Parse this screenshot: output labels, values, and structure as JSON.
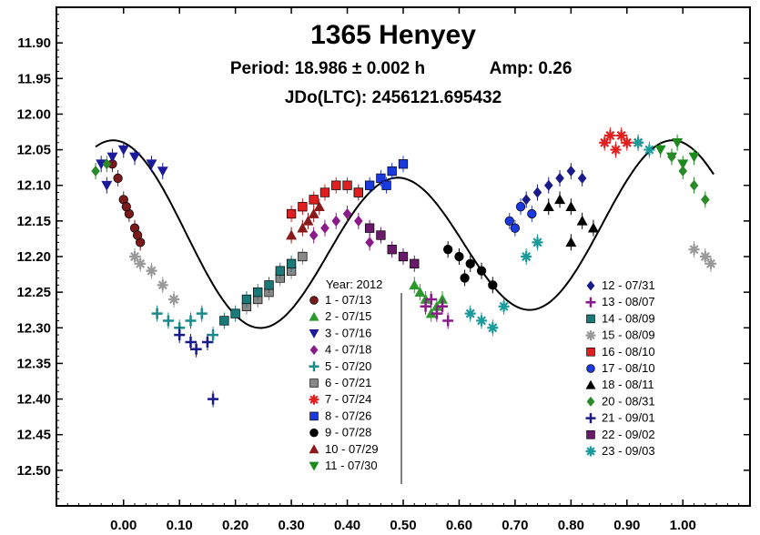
{
  "chart_data": {
    "type": "scatter",
    "title": "1365 Henyey",
    "period_label": "Period: 18.986 ± 0.002 h",
    "amp_label": "Amp: 0.26",
    "epoch_label": "JDo(LTC): 2456121.695432",
    "xlabel": "",
    "ylabel": "",
    "xlim": [
      -0.12,
      1.12
    ],
    "ylim": [
      12.55,
      11.85
    ],
    "y_inverted": true,
    "x_ticks": [
      "0.00",
      "0.10",
      "0.20",
      "0.30",
      "0.40",
      "0.50",
      "0.60",
      "0.70",
      "0.80",
      "0.90",
      "1.00"
    ],
    "y_ticks": [
      "11.90",
      "11.95",
      "12.00",
      "12.05",
      "12.10",
      "12.15",
      "12.20",
      "12.25",
      "12.30",
      "12.35",
      "12.40",
      "12.45",
      "12.50"
    ],
    "legend_title": "Year: 2012",
    "legend_placement": "bottom-center and bottom-right",
    "series": [
      {
        "name": "1 - 07/13",
        "marker": "circle",
        "color": "#7a1a1a",
        "points": [
          [
            -0.02,
            12.07
          ],
          [
            0.0,
            12.12
          ],
          [
            0.01,
            12.14
          ],
          [
            0.02,
            12.16
          ],
          [
            0.03,
            12.18
          ],
          [
            -0.01,
            12.09
          ],
          [
            0.005,
            12.13
          ],
          [
            0.025,
            12.17
          ]
        ]
      },
      {
        "name": "2 - 07/15",
        "marker": "triangle",
        "color": "#2a9a2a",
        "points": [
          [
            0.52,
            12.24
          ],
          [
            0.54,
            12.26
          ],
          [
            0.56,
            12.27
          ],
          [
            0.53,
            12.25
          ],
          [
            0.55,
            12.28
          ],
          [
            0.57,
            12.26
          ]
        ]
      },
      {
        "name": "3 - 07/16",
        "marker": "triangle-down",
        "color": "#1a1a9a",
        "points": [
          [
            -0.04,
            12.07
          ],
          [
            -0.02,
            12.06
          ],
          [
            0.0,
            12.05
          ],
          [
            0.02,
            12.06
          ],
          [
            0.05,
            12.07
          ],
          [
            0.07,
            12.08
          ],
          [
            -0.03,
            12.1
          ]
        ]
      },
      {
        "name": "4 - 07/18",
        "marker": "diamond",
        "color": "#8a1a8a",
        "points": [
          [
            0.34,
            12.17
          ],
          [
            0.36,
            12.16
          ],
          [
            0.38,
            12.15
          ],
          [
            0.4,
            12.14
          ],
          [
            0.42,
            12.15
          ],
          [
            0.44,
            12.18
          ]
        ]
      },
      {
        "name": "5 - 07/20",
        "marker": "plus",
        "color": "#1a8a8a",
        "points": [
          [
            0.06,
            12.28
          ],
          [
            0.08,
            12.29
          ],
          [
            0.1,
            12.3
          ],
          [
            0.12,
            12.29
          ],
          [
            0.14,
            12.28
          ],
          [
            0.16,
            12.31
          ]
        ]
      },
      {
        "name": "6 - 07/21",
        "marker": "square",
        "color": "#888888",
        "points": [
          [
            0.22,
            12.27
          ],
          [
            0.24,
            12.26
          ],
          [
            0.26,
            12.25
          ],
          [
            0.28,
            12.23
          ],
          [
            0.3,
            12.22
          ],
          [
            0.32,
            12.2
          ]
        ]
      },
      {
        "name": "7 - 07/24",
        "marker": "star",
        "color": "#e02020",
        "points": [
          [
            0.86,
            12.04
          ],
          [
            0.87,
            12.03
          ],
          [
            0.88,
            12.05
          ],
          [
            0.89,
            12.03
          ],
          [
            0.9,
            12.04
          ],
          [
            0.92,
            12.04
          ]
        ]
      },
      {
        "name": "8 - 07/26",
        "marker": "square",
        "color": "#1a3ae0",
        "points": [
          [
            0.42,
            12.11
          ],
          [
            0.44,
            12.1
          ],
          [
            0.46,
            12.09
          ],
          [
            0.48,
            12.08
          ],
          [
            0.5,
            12.07
          ],
          [
            0.47,
            12.1
          ]
        ]
      },
      {
        "name": "9 - 07/28",
        "marker": "circle",
        "color": "#000000",
        "points": [
          [
            0.58,
            12.19
          ],
          [
            0.6,
            12.2
          ],
          [
            0.62,
            12.21
          ],
          [
            0.64,
            12.22
          ],
          [
            0.66,
            12.24
          ],
          [
            0.61,
            12.23
          ]
        ]
      },
      {
        "name": "10 - 07/29",
        "marker": "triangle",
        "color": "#8a1a1a",
        "points": [
          [
            0.3,
            12.17
          ],
          [
            0.32,
            12.16
          ],
          [
            0.34,
            12.14
          ],
          [
            0.33,
            12.15
          ],
          [
            0.35,
            12.13
          ]
        ]
      },
      {
        "name": "11 - 07/30",
        "marker": "triangle-down",
        "color": "#1a8a1a",
        "points": [
          [
            0.96,
            12.05
          ],
          [
            0.98,
            12.06
          ],
          [
            1.0,
            12.07
          ],
          [
            1.02,
            12.06
          ],
          [
            0.99,
            12.04
          ]
        ]
      },
      {
        "name": "12 - 07/31",
        "marker": "diamond",
        "color": "#1a1a8a",
        "points": [
          [
            0.72,
            12.12
          ],
          [
            0.74,
            12.11
          ],
          [
            0.76,
            12.1
          ],
          [
            0.78,
            12.09
          ],
          [
            0.8,
            12.08
          ],
          [
            0.82,
            12.09
          ]
        ]
      },
      {
        "name": "13 - 08/07",
        "marker": "plus",
        "color": "#8a1a8a",
        "points": [
          [
            0.54,
            12.27
          ],
          [
            0.56,
            12.28
          ],
          [
            0.58,
            12.29
          ],
          [
            0.57,
            12.27
          ],
          [
            0.55,
            12.26
          ]
        ]
      },
      {
        "name": "14 - 08/09",
        "marker": "square",
        "color": "#1a7a7a",
        "points": [
          [
            0.18,
            12.29
          ],
          [
            0.2,
            12.28
          ],
          [
            0.22,
            12.26
          ],
          [
            0.24,
            12.25
          ],
          [
            0.26,
            12.24
          ],
          [
            0.28,
            12.22
          ],
          [
            0.3,
            12.21
          ]
        ]
      },
      {
        "name": "15 - 08/09",
        "marker": "star",
        "color": "#999999",
        "points": [
          [
            0.02,
            12.2
          ],
          [
            0.03,
            12.21
          ],
          [
            0.05,
            12.22
          ],
          [
            0.07,
            12.24
          ],
          [
            0.09,
            12.26
          ],
          [
            1.02,
            12.19
          ],
          [
            1.04,
            12.2
          ],
          [
            1.05,
            12.21
          ]
        ]
      },
      {
        "name": "16 - 08/10",
        "marker": "square",
        "color": "#e02020",
        "points": [
          [
            0.3,
            12.14
          ],
          [
            0.32,
            12.13
          ],
          [
            0.34,
            12.12
          ],
          [
            0.36,
            12.11
          ],
          [
            0.38,
            12.1
          ],
          [
            0.4,
            12.1
          ],
          [
            0.42,
            12.11
          ]
        ]
      },
      {
        "name": "17 - 08/10",
        "marker": "circle",
        "color": "#1a3ae0",
        "points": [
          [
            0.69,
            12.15
          ],
          [
            0.71,
            12.13
          ],
          [
            0.73,
            12.14
          ],
          [
            0.7,
            12.16
          ]
        ]
      },
      {
        "name": "18 - 08/11",
        "marker": "triangle",
        "color": "#000000",
        "points": [
          [
            0.76,
            12.13
          ],
          [
            0.78,
            12.12
          ],
          [
            0.8,
            12.13
          ],
          [
            0.82,
            12.15
          ],
          [
            0.84,
            12.16
          ],
          [
            0.8,
            12.18
          ]
        ]
      },
      {
        "name": "20 - 08/31",
        "marker": "diamond",
        "color": "#2a8a2a",
        "points": [
          [
            -0.05,
            12.08
          ],
          [
            -0.03,
            12.07
          ],
          [
            0.98,
            12.06
          ],
          [
            1.0,
            12.08
          ],
          [
            1.02,
            12.1
          ],
          [
            1.04,
            12.12
          ]
        ]
      },
      {
        "name": "21 - 09/01",
        "marker": "plus",
        "color": "#1a1a8a",
        "points": [
          [
            0.1,
            12.31
          ],
          [
            0.12,
            12.32
          ],
          [
            0.13,
            12.33
          ],
          [
            0.15,
            12.32
          ],
          [
            0.16,
            12.4
          ]
        ]
      },
      {
        "name": "22 - 09/02",
        "marker": "square",
        "color": "#6a1a6a",
        "points": [
          [
            0.44,
            12.16
          ],
          [
            0.46,
            12.17
          ],
          [
            0.48,
            12.19
          ],
          [
            0.5,
            12.2
          ],
          [
            0.52,
            12.21
          ]
        ]
      },
      {
        "name": "23 - 09/03",
        "marker": "star",
        "color": "#1a9a9a",
        "points": [
          [
            0.62,
            12.28
          ],
          [
            0.64,
            12.29
          ],
          [
            0.66,
            12.3
          ],
          [
            0.68,
            12.27
          ],
          [
            0.72,
            12.2
          ],
          [
            0.74,
            12.18
          ],
          [
            0.92,
            12.04
          ],
          [
            0.94,
            12.05
          ]
        ]
      }
    ]
  }
}
